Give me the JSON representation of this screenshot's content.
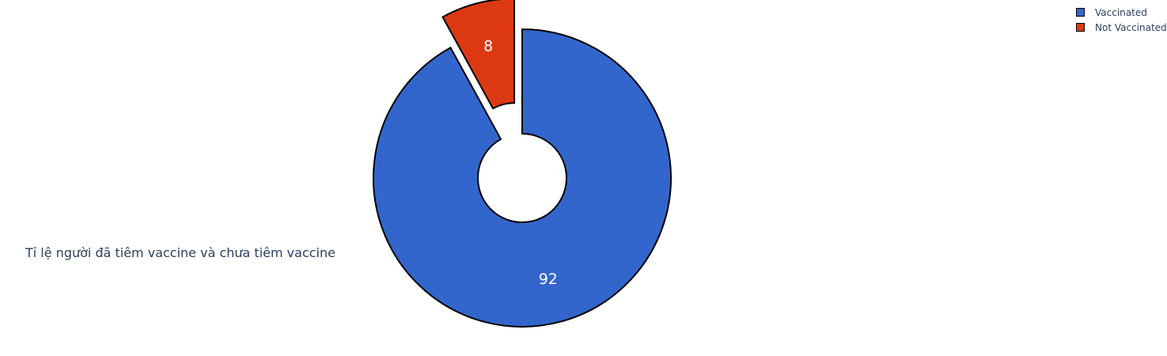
{
  "chart_data": {
    "type": "pie",
    "hole": true,
    "pulled_slice": "Not Vaccinated",
    "slices": [
      {
        "label": "Vaccinated",
        "value": 92,
        "color": "#3366cc"
      },
      {
        "label": "Not Vaccinated",
        "value": 8,
        "color": "#dc3912"
      }
    ],
    "annotation": "Tỉ lệ người đã tiêm vaccine và chưa tiêm vaccine",
    "legend": {
      "placement": "top-right",
      "entries": [
        "Vaccinated",
        "Not Vaccinated"
      ]
    }
  }
}
